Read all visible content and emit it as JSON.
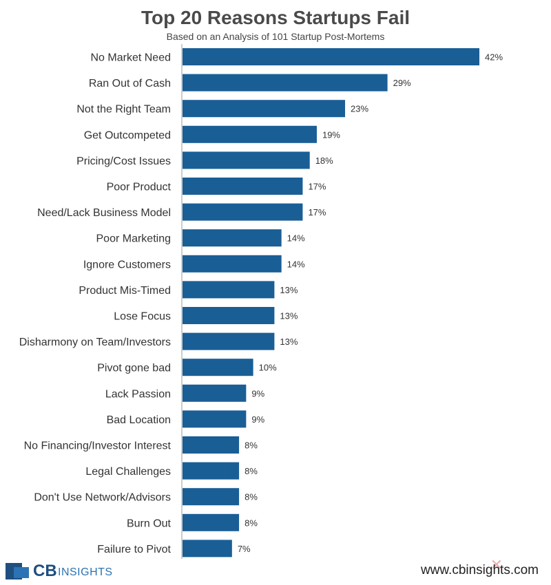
{
  "chart_data": {
    "type": "bar",
    "orientation": "horizontal",
    "title": "Top 20 Reasons Startups Fail",
    "subtitle": "Based on an Analysis of 101 Startup Post-Mortems",
    "categories": [
      "No Market Need",
      "Ran Out of Cash",
      "Not the Right Team",
      "Get Outcompeted",
      "Pricing/Cost Issues",
      "Poor Product",
      "Need/Lack Business Model",
      "Poor Marketing",
      "Ignore Customers",
      "Product Mis-Timed",
      "Lose Focus",
      "Disharmony on Team/Investors",
      "Pivot gone bad",
      "Lack Passion",
      "Bad Location",
      "No Financing/Investor Interest",
      "Legal Challenges",
      "Don't Use Network/Advisors",
      "Burn Out",
      "Failure to Pivot"
    ],
    "values": [
      42,
      29,
      23,
      19,
      18,
      17,
      17,
      14,
      14,
      13,
      13,
      13,
      10,
      9,
      9,
      8,
      8,
      8,
      8,
      7
    ],
    "value_labels": [
      "42%",
      "29%",
      "23%",
      "19%",
      "18%",
      "17%",
      "17%",
      "14%",
      "14%",
      "13%",
      "13%",
      "13%",
      "10%",
      "9%",
      "9%",
      "8%",
      "8%",
      "8%",
      "8%",
      "7%"
    ],
    "xlim": [
      0,
      42
    ],
    "bar_color": "#1a5e96",
    "grid": false,
    "legend": "none"
  },
  "branding": {
    "logo_cb": "CB",
    "logo_insights": "INSIGHTS",
    "website": "www.cbinsights.com"
  }
}
